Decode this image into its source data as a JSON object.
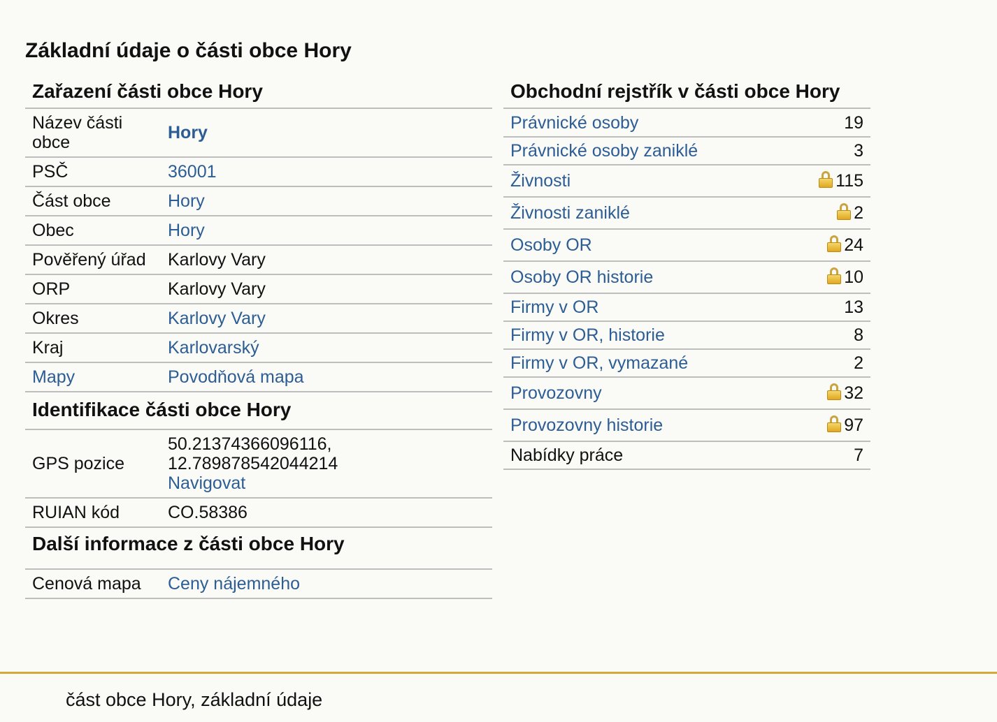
{
  "page": {
    "title": "Základní údaje o části obce Hory"
  },
  "classification": {
    "heading": "Zařazení části obce Hory",
    "rows": [
      {
        "label": "Název části obce",
        "value": "Hory"
      },
      {
        "label": "PSČ",
        "value": "36001"
      },
      {
        "label": "Část obce",
        "value": "Hory"
      },
      {
        "label": "Obec",
        "value": "Hory"
      },
      {
        "label": "Pověřený úřad",
        "value": "Karlovy Vary"
      },
      {
        "label": "ORP",
        "value": "Karlovy Vary"
      },
      {
        "label": "Okres",
        "value": "Karlovy Vary"
      },
      {
        "label": "Kraj",
        "value": "Karlovarský"
      },
      {
        "label": "Mapy",
        "value": "Povodňová mapa"
      }
    ]
  },
  "identification": {
    "heading": "Identifikace části obce Hory",
    "gps_label": "GPS pozice",
    "gps_value": "50.21374366096116, 12.789878542044214",
    "navigate": "Navigovat",
    "ruian_label": "RUIAN kód",
    "ruian_value": "CO.58386"
  },
  "more_info": {
    "heading": "Další informace z části obce Hory",
    "label": "Cenová mapa",
    "value": "Ceny nájemného"
  },
  "registry": {
    "heading": "Obchodní rejstřík v části obce Hory",
    "rows": [
      {
        "label": "Právnické osoby",
        "count": "19"
      },
      {
        "label": "Právnické osoby zaniklé",
        "count": "3"
      },
      {
        "label": "Živnosti",
        "count": "115"
      },
      {
        "label": "Živnosti zaniklé",
        "count": "2"
      },
      {
        "label": "Osoby OR",
        "count": "24"
      },
      {
        "label": "Osoby OR historie",
        "count": "10"
      },
      {
        "label": "Firmy v OR",
        "count": "13"
      },
      {
        "label": "Firmy v OR, historie",
        "count": "8"
      },
      {
        "label": "Firmy v OR, vymazané",
        "count": "2"
      },
      {
        "label": "Provozovny",
        "count": "32"
      },
      {
        "label": "Provozovny historie",
        "count": "97"
      },
      {
        "label": "Nabídky práce",
        "count": "7"
      }
    ],
    "lock_icon": "lock-icon"
  },
  "footer": {
    "text": "část obce Hory, základní údaje"
  },
  "colors": {
    "link": "#2d5d95",
    "background": "#fafaf6",
    "footer_border": "#d4a93a",
    "row_border": "#bdbdbd"
  }
}
